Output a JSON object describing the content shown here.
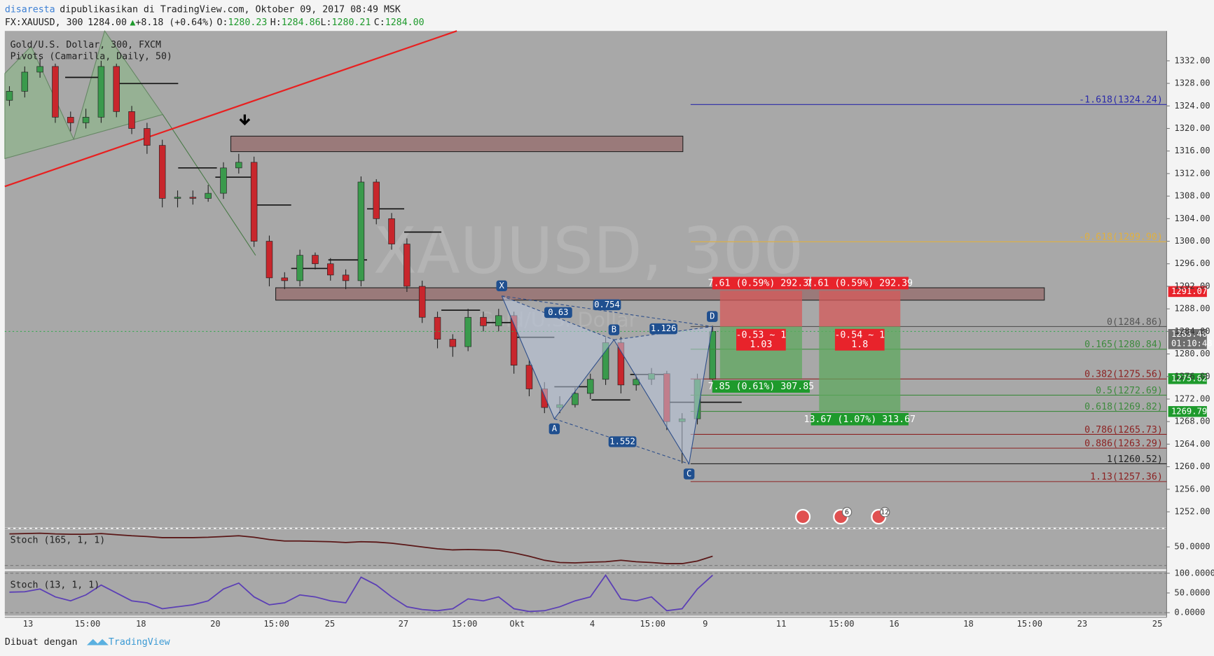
{
  "header": {
    "author": "disaresta",
    "published": "dipublikasikan di TradingView.com, Oktober 09, 2017 08:49 MSK",
    "symbol": "FX:XAUUSD, 300",
    "last": "1284.00",
    "change": "+8.18 (+0.64%)",
    "open_label": "O:",
    "open": "1280.23",
    "high_label": "H:",
    "high": "1284.86",
    "low_label": "L:",
    "low": "1280.21",
    "close_label": "C:",
    "close": "1284.00",
    "legend": [
      "Gold/U.S. Dollar, 300, FXCM",
      "Pivots (Camarilla, Daily, 50)"
    ],
    "watermark": "XAUUSD, 300",
    "watermark_sub": "Gold/U.S. Dollar"
  },
  "chart_data": {
    "type": "candlestick",
    "open": [
      1325,
      1326.6,
      1330,
      1331,
      1322,
      1321,
      1322,
      1331,
      1323,
      1320,
      1317,
      1307.6,
      1307.8,
      1307.6,
      1308.5,
      1313,
      1314,
      1300,
      1293.5,
      1293,
      1297.5,
      1296,
      1294,
      1293,
      1310.5,
      1304,
      1299.5,
      1292,
      1286.5,
      1282.6,
      1281.3,
      1286.5,
      1285,
      1286.8,
      1278,
      1273.8,
      1270.5,
      1271,
      1273,
      1275.5,
      1282,
      1274.5,
      1275.5,
      1276.5,
      1268,
      1268.5,
      1275.5
    ],
    "high": [
      1327.5,
      1331,
      1332.5,
      1331.5,
      1323,
      1323.5,
      1332,
      1331.5,
      1324,
      1321,
      1318,
      1309,
      1309,
      1310,
      1314,
      1315.5,
      1315,
      1301,
      1294.5,
      1298.5,
      1298,
      1297,
      1295,
      1311.5,
      1311,
      1305,
      1300.5,
      1293,
      1287.5,
      1283.5,
      1288,
      1287.5,
      1288,
      1287.5,
      1279,
      1275,
      1272.5,
      1274,
      1276.5,
      1283,
      1283,
      1276.5,
      1277.5,
      1277,
      1269.5,
      1276.5,
      1285
    ],
    "low": [
      1324,
      1325.5,
      1329,
      1321,
      1319.5,
      1320,
      1321,
      1322,
      1319,
      1315.5,
      1306,
      1306,
      1306.5,
      1307,
      1307.5,
      1312,
      1299,
      1292,
      1291.5,
      1292,
      1295,
      1293,
      1291.5,
      1292,
      1303,
      1298.5,
      1291,
      1285.5,
      1281,
      1279.5,
      1280.5,
      1284,
      1284,
      1276.5,
      1272.5,
      1269.5,
      1269.5,
      1270.5,
      1272,
      1274.5,
      1273,
      1273.5,
      1274.5,
      1266.5,
      1260.6,
      1267.5,
      1275
    ],
    "close": [
      1326.6,
      1330,
      1331,
      1322,
      1321,
      1322,
      1331,
      1323,
      1320,
      1317,
      1307.6,
      1307.8,
      1307.6,
      1308.5,
      1313,
      1314,
      1300,
      1293.5,
      1293,
      1297.5,
      1296,
      1294,
      1293,
      1310.5,
      1304,
      1299.5,
      1292,
      1286.5,
      1282.6,
      1281.3,
      1286.5,
      1285,
      1286.8,
      1278,
      1273.8,
      1270.5,
      1271,
      1273,
      1275.5,
      1282,
      1274.5,
      1275.5,
      1276.5,
      1268,
      1268.5,
      1275.5,
      1284
    ],
    "up_color": "#3a9a4c",
    "down_color": "#c8262c",
    "ylim": [
      1249.2,
      1337.3
    ],
    "yticks": [
      {
        "value": 1332,
        "label": "1332.00"
      },
      {
        "value": 1328,
        "label": "1328.00"
      },
      {
        "value": 1324,
        "label": "1324.00"
      },
      {
        "value": 1320,
        "label": "1320.00"
      },
      {
        "value": 1316,
        "label": "1316.00"
      },
      {
        "value": 1312,
        "label": "1312.00"
      },
      {
        "value": 1308,
        "label": "1308.00"
      },
      {
        "value": 1304,
        "label": "1304.00"
      },
      {
        "value": 1300,
        "label": "1300.00"
      },
      {
        "value": 1296,
        "label": "1296.00"
      },
      {
        "value": 1292,
        "label": "1292.00"
      },
      {
        "value": 1288,
        "label": "1288.00"
      },
      {
        "value": 1284,
        "label": "1284.00"
      },
      {
        "value": 1280,
        "label": "1280.00"
      },
      {
        "value": 1276,
        "label": "1276.00"
      },
      {
        "value": 1272,
        "label": "1272.00"
      },
      {
        "value": 1268,
        "label": "1268.00"
      },
      {
        "value": 1264,
        "label": "1264.00"
      },
      {
        "value": 1260,
        "label": "1260.00"
      },
      {
        "value": 1256,
        "label": "1256.00"
      },
      {
        "value": 1252,
        "label": "1252.00"
      }
    ],
    "x_labels": [
      "13",
      "15:00",
      "18",
      "20",
      "15:00",
      "25",
      "27",
      "15:00",
      "Okt",
      "4",
      "15:00",
      "9",
      "11",
      "15:00",
      "16",
      "18",
      "15:00",
      "23",
      "25"
    ],
    "price_tags": [
      {
        "value": 1291.07,
        "label": "1291.07",
        "color": "#e8232b"
      },
      {
        "value": 1283.46,
        "label": "1283.46",
        "sub": "01:10:48",
        "color": "#6f6f6f"
      },
      {
        "value": 1275.62,
        "label": "1275.62",
        "color": "#1e9a2c"
      },
      {
        "value": 1269.79,
        "label": "1269.79",
        "color": "#1e9a2c"
      }
    ],
    "last_price": 1284,
    "fib": [
      {
        "label": "-1.618(1324.24)",
        "value": 1324.24,
        "color": "#2a2aa8"
      },
      {
        "label": "-0.618(1299.90)",
        "value": 1299.9,
        "color": "#e0b040"
      },
      {
        "label": "0(1284.86)",
        "value": 1284.86,
        "color": "#555555"
      },
      {
        "label": "0.165(1280.84)",
        "value": 1280.84,
        "color": "#3d8a3d"
      },
      {
        "label": "0.382(1275.56)",
        "value": 1275.56,
        "color": "#8c2222"
      },
      {
        "label": "0.5(1272.69)",
        "value": 1272.69,
        "color": "#3d8a3d"
      },
      {
        "label": "0.618(1269.82)",
        "value": 1269.82,
        "color": "#3d8a3d"
      },
      {
        "label": "0.786(1265.73)",
        "value": 1265.73,
        "color": "#8c2222"
      },
      {
        "label": "0.886(1263.29)",
        "value": 1263.29,
        "color": "#8c2222"
      },
      {
        "label": "1(1260.52)",
        "value": 1260.52,
        "color": "#222222"
      },
      {
        "label": "1.13(1257.36)",
        "value": 1257.36,
        "color": "#8c2222"
      }
    ],
    "pattern": {
      "points": [
        {
          "label": "X",
          "value": 1290.3
        },
        {
          "label": "A",
          "value": 1268.5
        },
        {
          "label": "B",
          "value": 1282.5
        },
        {
          "label": "C",
          "value": 1260.5
        },
        {
          "label": "D",
          "value": 1284.86
        }
      ],
      "ratios": [
        "0.63",
        "0.754",
        "1.126",
        "1.552"
      ]
    },
    "trades": [
      {
        "entry": 1284.86,
        "stop": 1291.2,
        "target": 1275.6,
        "risk": "7.61 (0.59%) 292.39",
        "ratio": "-0.53 ~ 1",
        "ratio_value": "1.03",
        "reward": "7.85 (0.61%) 307.85"
      },
      {
        "entry": 1284.86,
        "stop": 1291.2,
        "target": 1269.8,
        "risk": "7.61 (0.59%) 292.39",
        "ratio": "-0.54 ~ 1",
        "ratio_value": "1.8",
        "reward": "13.67 (1.07%) 313.67"
      }
    ],
    "events": [
      "6",
      "12"
    ],
    "stoch": [
      {
        "name": "Stoch (165, 1, 1)",
        "color": "#5a1717",
        "ylim": [
          0,
          100
        ],
        "yticks": [
          {
            "value": 50,
            "label": "50.0000"
          }
        ],
        "values": [
          85,
          86,
          87,
          85,
          84,
          84,
          86,
          83,
          80,
          78,
          75,
          75,
          75,
          76,
          78,
          80,
          76,
          70,
          66,
          66,
          65,
          64,
          62,
          64,
          63,
          60,
          55,
          50,
          45,
          42,
          43,
          42,
          41,
          34,
          25,
          14,
          8,
          7,
          9,
          10,
          14,
          10,
          8,
          5,
          5,
          12,
          25
        ]
      },
      {
        "name": "Stoch (13, 1, 1)",
        "color": "#5b3fb5",
        "ylim": [
          0,
          100
        ],
        "yticks": [
          {
            "value": 100,
            "label": "100.0000"
          },
          {
            "value": 50,
            "label": "50.0000"
          },
          {
            "value": 0,
            "label": "0.0000"
          }
        ],
        "values": [
          52,
          53,
          60,
          40,
          30,
          45,
          70,
          50,
          30,
          25,
          10,
          15,
          20,
          30,
          60,
          75,
          40,
          20,
          25,
          45,
          40,
          30,
          25,
          90,
          70,
          40,
          15,
          8,
          5,
          10,
          35,
          30,
          40,
          10,
          3,
          5,
          15,
          30,
          40,
          95,
          35,
          30,
          40,
          5,
          10,
          60,
          95
        ]
      }
    ]
  },
  "footer": {
    "made_with": "Dibuat dengan",
    "brand": "TradingView"
  }
}
